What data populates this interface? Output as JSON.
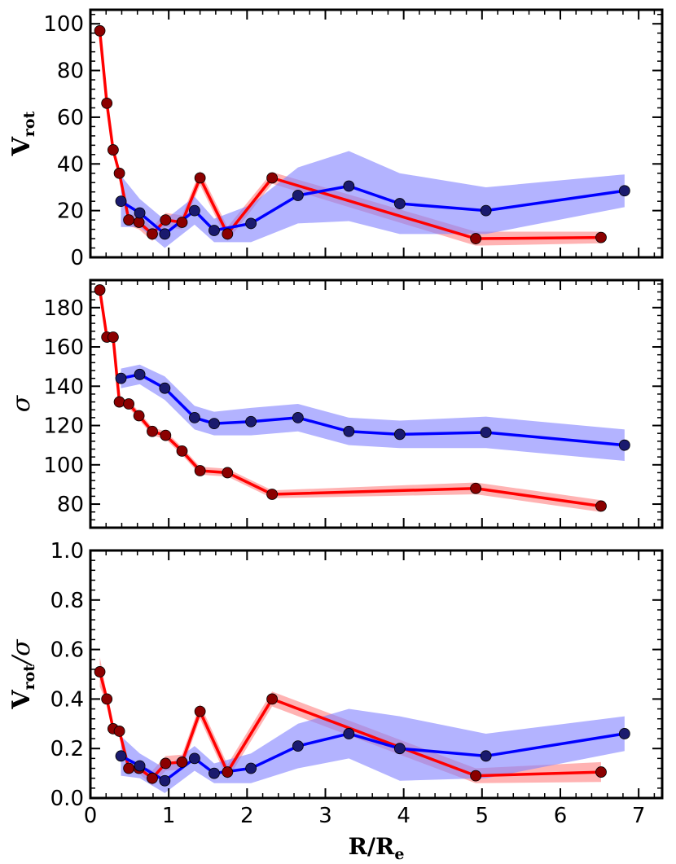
{
  "chart_data": {
    "type": "line",
    "xlabel": "R/R",
    "xlabel_sub": "e",
    "xlim": [
      0,
      7.3
    ],
    "x_ticks": [
      0,
      1,
      2,
      3,
      4,
      5,
      6,
      7
    ],
    "x_tick_labels": [
      "0",
      "1",
      "2",
      "3",
      "4",
      "5",
      "6",
      "7"
    ],
    "series_colors": {
      "red": "#ff0000",
      "blue": "#0000ff",
      "red_marker": "#8b0000",
      "blue_marker": "#1a1a6e",
      "red_band": "#ff8080",
      "blue_band": "#8080ff"
    },
    "panels": [
      {
        "name": "vrot",
        "ylabel": "V",
        "ylabel_sub": "rot",
        "ylim": [
          0,
          106
        ],
        "y_ticks": [
          0,
          20,
          40,
          60,
          80,
          100
        ],
        "y_tick_labels": [
          "0",
          "20",
          "40",
          "60",
          "80",
          "100"
        ],
        "series": [
          {
            "name": "red",
            "x": [
              0.12,
              0.21,
              0.29,
              0.37,
              0.49,
              0.62,
              0.79,
              0.96,
              1.17,
              1.4,
              1.75,
              2.32,
              4.92,
              6.52
            ],
            "y": [
              97,
              66,
              46,
              36,
              16,
              15,
              10,
              16,
              15,
              34,
              10,
              34,
              8,
              8.5
            ],
            "err": [
              1,
              1,
              1.5,
              2,
              2.5,
              3,
              3,
              3,
              3,
              3,
              3,
              2.5,
              3,
              2.5
            ]
          },
          {
            "name": "blue",
            "x": [
              0.39,
              0.63,
              0.95,
              1.33,
              1.58,
              2.05,
              2.65,
              3.3,
              3.95,
              5.05,
              6.82
            ],
            "y": [
              24,
              19,
              10,
              20,
              11.5,
              14.5,
              26.5,
              30.5,
              23,
              20,
              28.5
            ],
            "err": [
              11,
              6,
              6,
              6,
              5,
              8,
              12,
              15,
              13,
              10,
              7
            ]
          }
        ]
      },
      {
        "name": "sigma",
        "ylabel": "σ",
        "ylabel_sub": "",
        "ylim": [
          68,
          194
        ],
        "y_ticks": [
          80,
          100,
          120,
          140,
          160,
          180
        ],
        "y_tick_labels": [
          "80",
          "100",
          "120",
          "140",
          "160",
          "180"
        ],
        "series": [
          {
            "name": "red",
            "x": [
              0.12,
              0.21,
              0.29,
              0.37,
              0.49,
              0.62,
              0.79,
              0.96,
              1.17,
              1.4,
              1.75,
              2.32,
              4.92,
              6.52
            ],
            "y": [
              189,
              165,
              165,
              132,
              131,
              125,
              117,
              115,
              107,
              97,
              96,
              85,
              88,
              79
            ],
            "err": [
              2,
              2,
              2,
              2,
              2,
              2,
              2,
              2,
              2,
              2,
              2,
              2,
              3,
              3
            ]
          },
          {
            "name": "blue",
            "x": [
              0.39,
              0.63,
              0.95,
              1.33,
              1.58,
              2.05,
              2.65,
              3.3,
              3.95,
              5.05,
              6.82
            ],
            "y": [
              144,
              146,
              139,
              124,
              121,
              122,
              124,
              117,
              115.5,
              116.5,
              110
            ],
            "err": [
              5,
              5,
              6,
              6,
              6,
              7,
              7,
              7,
              7,
              8,
              8
            ]
          }
        ]
      },
      {
        "name": "vrot_over_sigma",
        "ylabel": "V",
        "ylabel_sub": "rot",
        "ylabel_suffix": "/σ",
        "ylim": [
          0,
          1.0
        ],
        "y_ticks": [
          0.0,
          0.2,
          0.4,
          0.6,
          0.8,
          1.0
        ],
        "y_tick_labels": [
          "0.0",
          "0.2",
          "0.4",
          "0.6",
          "0.8",
          "1.0"
        ],
        "series": [
          {
            "name": "red",
            "x": [
              0.12,
              0.21,
              0.29,
              0.37,
              0.49,
              0.62,
              0.79,
              0.96,
              1.17,
              1.4,
              1.75,
              2.32,
              4.92,
              6.52
            ],
            "y": [
              0.51,
              0.4,
              0.28,
              0.27,
              0.12,
              0.12,
              0.08,
              0.14,
              0.145,
              0.35,
              0.105,
              0.4,
              0.09,
              0.105
            ],
            "err": [
              0.06,
              0.02,
              0.02,
              0.02,
              0.02,
              0.02,
              0.03,
              0.03,
              0.03,
              0.03,
              0.03,
              0.03,
              0.03,
              0.04
            ]
          },
          {
            "name": "blue",
            "x": [
              0.39,
              0.63,
              0.95,
              1.33,
              1.58,
              2.05,
              2.65,
              3.3,
              3.95,
              5.05,
              6.82
            ],
            "y": [
              0.17,
              0.13,
              0.07,
              0.16,
              0.1,
              0.12,
              0.21,
              0.26,
              0.2,
              0.17,
              0.26
            ],
            "err": [
              0.08,
              0.05,
              0.05,
              0.05,
              0.04,
              0.06,
              0.09,
              0.1,
              0.13,
              0.09,
              0.07
            ]
          }
        ]
      }
    ]
  }
}
